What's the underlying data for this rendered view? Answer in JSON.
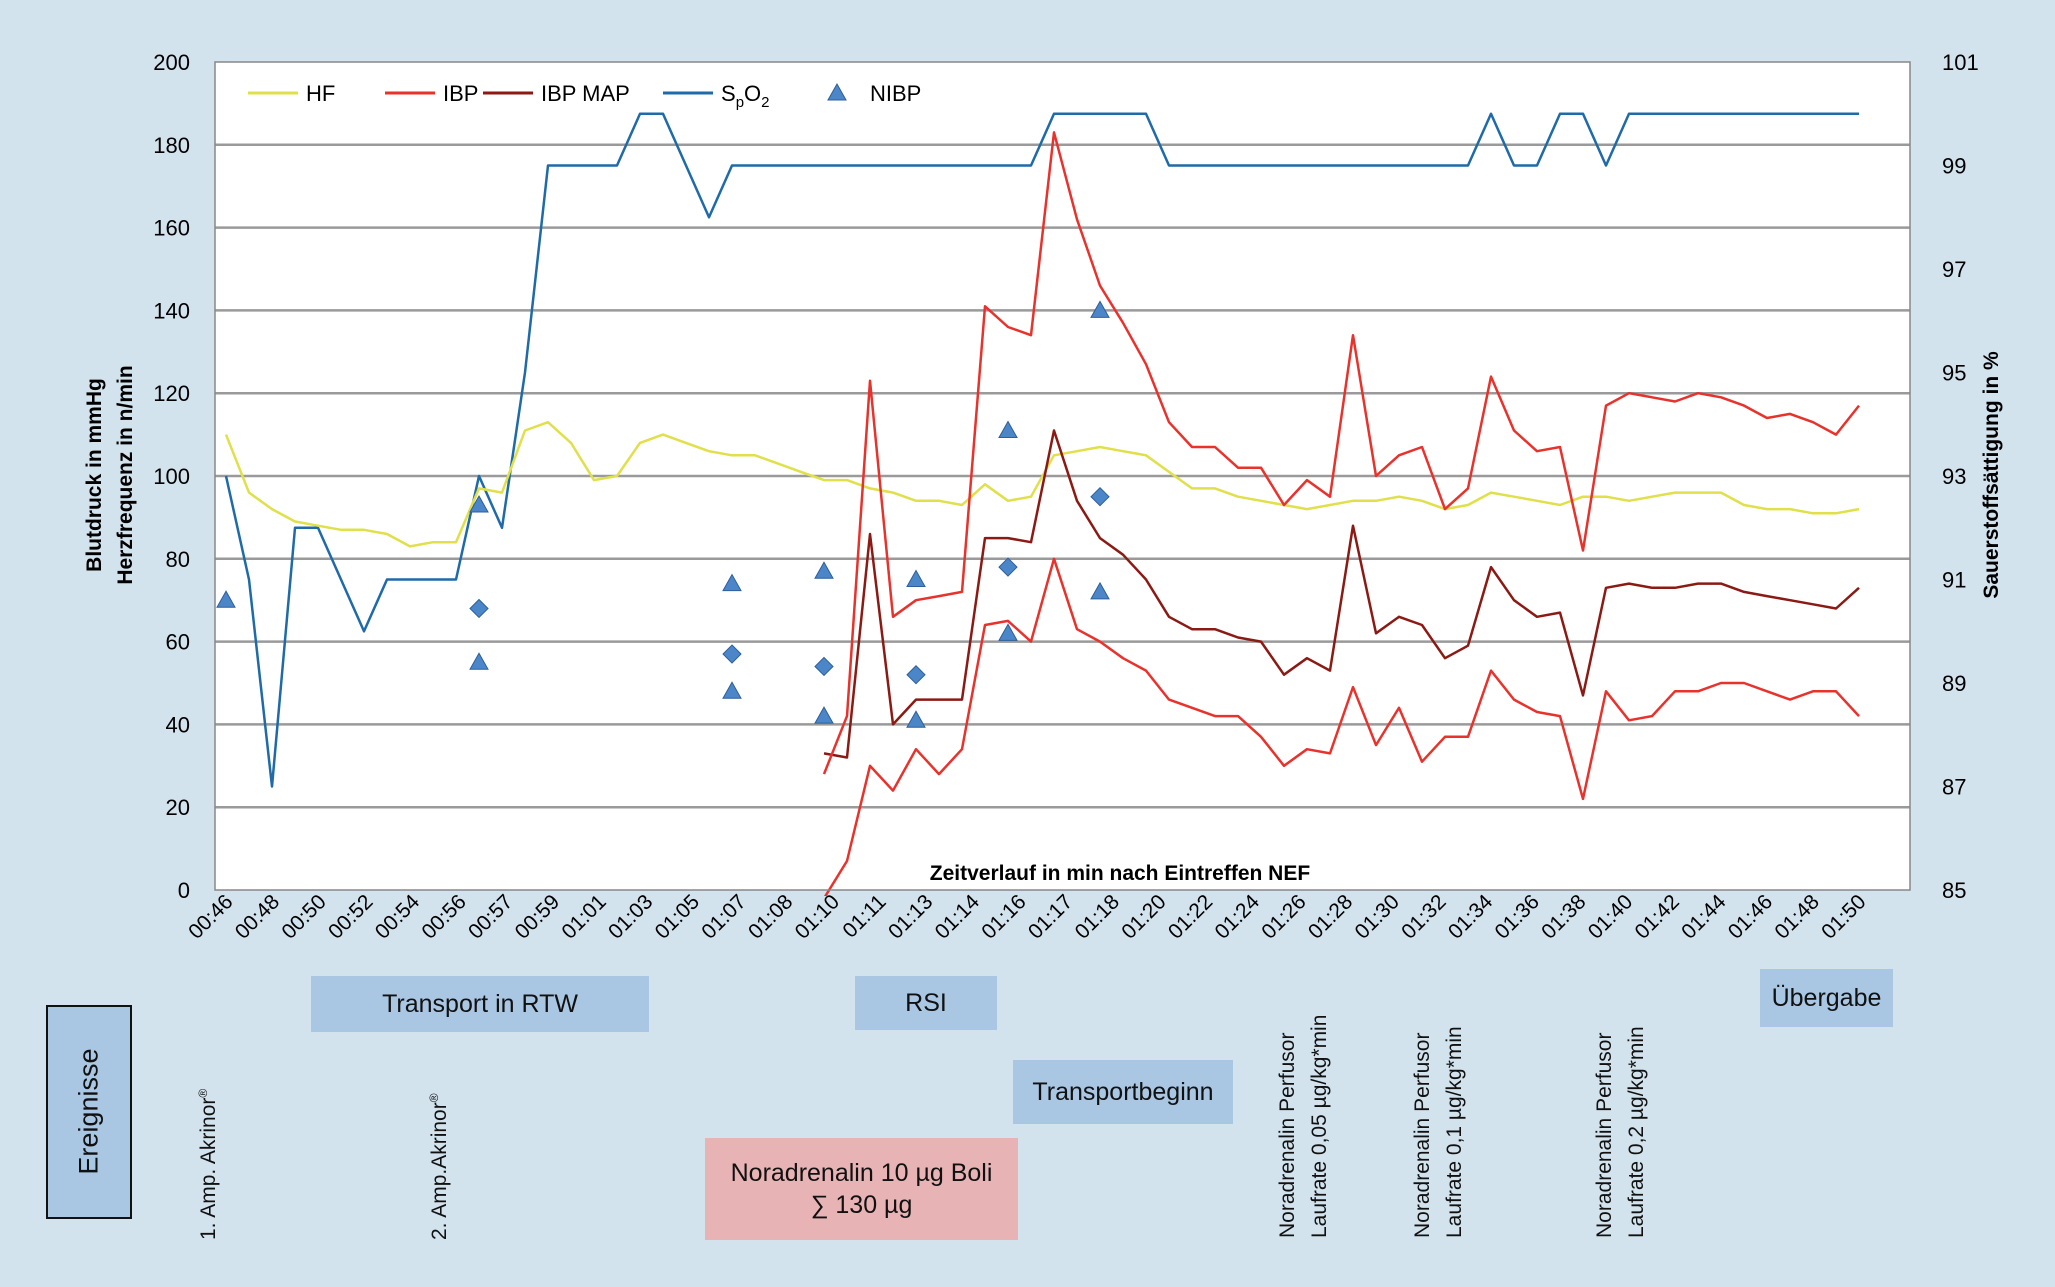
{
  "chart_data": {
    "type": "line",
    "x_title": "Zeitverlauf in min nach Eintreffen NEF",
    "y_left_title_1": "Blutdruck in mmHg",
    "y_left_title_2": "Herzfrequenz in n/min",
    "y_right_title": "Sauerstoffsättigung in %",
    "y_left_range": [
      0,
      200
    ],
    "y_left_ticks": [
      0,
      20,
      40,
      60,
      80,
      100,
      120,
      140,
      160,
      180,
      200
    ],
    "y_right_range": [
      85,
      101
    ],
    "y_right_ticks": [
      85,
      87,
      89,
      91,
      93,
      95,
      97,
      99,
      101
    ],
    "x_ticks": [
      "00:46",
      "00:48",
      "00:50",
      "00:52",
      "00:54",
      "00:56",
      "00:57",
      "00:59",
      "01:01",
      "01:03",
      "01:05",
      "01:07",
      "01:08",
      "01:10",
      "01:11",
      "01:13",
      "01:14",
      "01:16",
      "01:17",
      "01:18",
      "01:20",
      "01:22",
      "01:24",
      "01:26",
      "01:28",
      "01:30",
      "01:32",
      "01:34",
      "01:36",
      "01:38",
      "01:40",
      "01:42",
      "01:44",
      "01:46",
      "01:48",
      "01:50"
    ],
    "x_steps": 71,
    "grid": "horizontal",
    "legend_position": "top-left",
    "legend": [
      {
        "label": "HF",
        "color": "#e0e04a",
        "kind": "line"
      },
      {
        "label": "IBP",
        "color": "#e8322c",
        "kind": "line"
      },
      {
        "label": "IBP MAP",
        "color": "#8b1a14",
        "kind": "line"
      },
      {
        "label_main": "S",
        "label_sub1": "p",
        "label_mid": "O",
        "label_sub2": "2",
        "color": "#1f6aa8",
        "kind": "line"
      },
      {
        "label": "NIBP",
        "color": "#4a86c8",
        "kind": "marker"
      }
    ],
    "series": [
      {
        "name": "HF",
        "axis": "left",
        "color": "#e0e04a",
        "width": 2.5,
        "x": [
          0,
          1,
          2,
          3,
          4,
          5,
          6,
          7,
          8,
          9,
          10,
          11,
          12,
          13,
          14,
          15,
          16,
          17,
          18,
          19,
          20,
          21,
          22,
          23,
          24,
          25,
          26,
          27,
          28,
          29,
          30,
          31,
          32,
          33,
          34,
          35,
          36,
          37,
          38,
          39,
          40,
          41,
          42,
          43,
          44,
          45,
          46,
          47,
          48,
          49,
          50,
          51,
          52,
          53,
          54,
          55,
          56,
          57,
          58,
          59,
          60,
          61,
          62,
          63,
          64,
          65,
          66,
          67,
          68,
          69,
          70,
          71
        ],
        "y": [
          110,
          96,
          92,
          89,
          88,
          87,
          87,
          86,
          83,
          84,
          84,
          97,
          96,
          111,
          113,
          108,
          99,
          100,
          108,
          110,
          108,
          106,
          105,
          105,
          103,
          101,
          99,
          99,
          97,
          96,
          94,
          94,
          93,
          98,
          94,
          95,
          105,
          106,
          107,
          106,
          105,
          101,
          97,
          97,
          95,
          94,
          93,
          92,
          93,
          94,
          94,
          95,
          94,
          92,
          93,
          96,
          95,
          94,
          93,
          95,
          95,
          94,
          95,
          96,
          96,
          96,
          93,
          92,
          92,
          91,
          91,
          92
        ]
      },
      {
        "name": "IBP systolic",
        "axis": "left",
        "color": "#e8322c",
        "width": 2.5,
        "x": [
          26,
          27,
          28,
          29,
          30,
          31,
          32,
          33,
          34,
          35,
          36,
          37,
          38,
          39,
          40,
          41,
          42,
          43,
          44,
          45,
          46,
          47,
          48,
          49,
          50,
          51,
          52,
          53,
          54,
          55,
          56,
          57,
          58,
          59,
          60,
          61,
          62,
          63,
          64,
          65,
          66,
          67,
          68,
          69,
          70,
          71
        ],
        "y": [
          28,
          42,
          123,
          66,
          70,
          71,
          72,
          141,
          136,
          134,
          183,
          162,
          146,
          137,
          127,
          113,
          107,
          107,
          102,
          102,
          93,
          99,
          95,
          134,
          100,
          105,
          107,
          92,
          97,
          124,
          111,
          106,
          107,
          82,
          117,
          120,
          119,
          118,
          120,
          119,
          117,
          114,
          115,
          113,
          110,
          117
        ]
      },
      {
        "name": "IBP diastolic",
        "axis": "left",
        "color": "#e8322c",
        "width": 2.5,
        "x": [
          26,
          27,
          28,
          29,
          30,
          31,
          32,
          33,
          34,
          35,
          36,
          37,
          38,
          39,
          40,
          41,
          42,
          43,
          44,
          45,
          46,
          47,
          48,
          49,
          50,
          51,
          52,
          53,
          54,
          55,
          56,
          57,
          58,
          59,
          60,
          61,
          62,
          63,
          64,
          65,
          66,
          67,
          68,
          69,
          70,
          71
        ],
        "y": [
          -2,
          7,
          30,
          24,
          34,
          28,
          34,
          64,
          65,
          60,
          80,
          63,
          60,
          56,
          53,
          46,
          44,
          42,
          42,
          37,
          30,
          34,
          33,
          49,
          35,
          44,
          31,
          37,
          37,
          53,
          46,
          43,
          42,
          22,
          48,
          41,
          42,
          48,
          48,
          50,
          50,
          48,
          46,
          48,
          48,
          42
        ]
      },
      {
        "name": "IBP MAP",
        "axis": "left",
        "color": "#8b1a14",
        "width": 2.5,
        "x": [
          26,
          27,
          28,
          29,
          30,
          31,
          32,
          33,
          34,
          35,
          36,
          37,
          38,
          39,
          40,
          41,
          42,
          43,
          44,
          45,
          46,
          47,
          48,
          49,
          50,
          51,
          52,
          53,
          54,
          55,
          56,
          57,
          58,
          59,
          60,
          61,
          62,
          63,
          64,
          65,
          66,
          67,
          68,
          69,
          70,
          71
        ],
        "y": [
          33,
          32,
          86,
          40,
          46,
          46,
          46,
          85,
          85,
          84,
          111,
          94,
          85,
          81,
          75,
          66,
          63,
          63,
          61,
          60,
          52,
          56,
          53,
          88,
          62,
          66,
          64,
          56,
          59,
          78,
          70,
          66,
          67,
          47,
          73,
          74,
          73,
          73,
          74,
          74,
          72,
          71,
          70,
          69,
          68,
          73
        ]
      },
      {
        "name": "SpO2",
        "axis": "right",
        "color": "#1f6aa8",
        "width": 2.5,
        "x": [
          0,
          1,
          2,
          3,
          4,
          5,
          6,
          7,
          8,
          9,
          10,
          11,
          12,
          13,
          14,
          15,
          16,
          17,
          18,
          19,
          20,
          21,
          22,
          23,
          24,
          25,
          26,
          27,
          28,
          29,
          30,
          31,
          32,
          33,
          34,
          35,
          36,
          37,
          38,
          39,
          40,
          41,
          42,
          43,
          44,
          45,
          46,
          47,
          48,
          49,
          50,
          51,
          52,
          53,
          54,
          55,
          56,
          57,
          58,
          59,
          60,
          61,
          62,
          63,
          64,
          65,
          66,
          67,
          68,
          69,
          70,
          71
        ],
        "y": [
          93,
          91,
          87,
          92,
          92,
          91,
          90,
          91,
          91,
          91,
          91,
          93,
          92,
          95,
          99,
          99,
          99,
          99,
          100,
          100,
          99,
          98,
          99,
          99,
          99,
          99,
          99,
          99,
          99,
          99,
          99,
          99,
          99,
          99,
          99,
          99,
          100,
          100,
          100,
          100,
          100,
          99,
          99,
          99,
          99,
          99,
          99,
          99,
          99,
          99,
          99,
          99,
          99,
          99,
          99,
          100,
          99,
          99,
          100,
          100,
          99,
          100,
          100,
          100,
          100,
          100,
          100,
          100,
          100,
          100,
          100,
          100
        ]
      },
      {
        "name": "NIBP",
        "axis": "left",
        "kind": "markers",
        "color": "#4a86c8",
        "points": [
          {
            "x": 0,
            "y": 70,
            "m": "tri"
          },
          {
            "x": 11,
            "y": 93,
            "m": "tri"
          },
          {
            "x": 11,
            "y": 68,
            "m": "dia"
          },
          {
            "x": 11,
            "y": 55,
            "m": "tri"
          },
          {
            "x": 22,
            "y": 74,
            "m": "tri"
          },
          {
            "x": 22,
            "y": 57,
            "m": "dia"
          },
          {
            "x": 22,
            "y": 48,
            "m": "tri"
          },
          {
            "x": 26,
            "y": 77,
            "m": "tri"
          },
          {
            "x": 26,
            "y": 54,
            "m": "dia"
          },
          {
            "x": 26,
            "y": 42,
            "m": "tri"
          },
          {
            "x": 30,
            "y": 75,
            "m": "tri"
          },
          {
            "x": 30,
            "y": 52,
            "m": "dia"
          },
          {
            "x": 30,
            "y": 41,
            "m": "tri"
          },
          {
            "x": 34,
            "y": 111,
            "m": "tri"
          },
          {
            "x": 34,
            "y": 78,
            "m": "dia"
          },
          {
            "x": 34,
            "y": 62,
            "m": "tri"
          },
          {
            "x": 38,
            "y": 140,
            "m": "tri"
          },
          {
            "x": 38,
            "y": 95,
            "m": "dia"
          },
          {
            "x": 38,
            "y": 72,
            "m": "tri"
          }
        ]
      }
    ]
  },
  "events": {
    "title": "Ereignisse",
    "transport_rtw": "Transport in RTW",
    "rsi": "RSI",
    "uebergabe": "Übergabe",
    "transportbeginn": "Transportbeginn",
    "noradrenalin_boli_line1": "Noradrenalin 10 µg Boli",
    "noradrenalin_boli_line2": "∑ 130 µg",
    "akrinor1_text": "1. Amp. Akrinor",
    "akrinor1_sup": "®",
    "akrinor2_text": "2. Amp.Akrinor",
    "akrinor2_sup": "®",
    "perfusor1_line1": "Noradrenalin Perfusor",
    "perfusor1_line2": "Laufrate 0,05 µg/kg*min",
    "perfusor2_line1": "Noradrenalin Perfusor",
    "perfusor2_line2": "Laufrate 0,1 µg/kg*min",
    "perfusor3_line1": "Noradrenalin Perfusor",
    "perfusor3_line2": "Laufrate 0,2 µg/kg*min"
  }
}
